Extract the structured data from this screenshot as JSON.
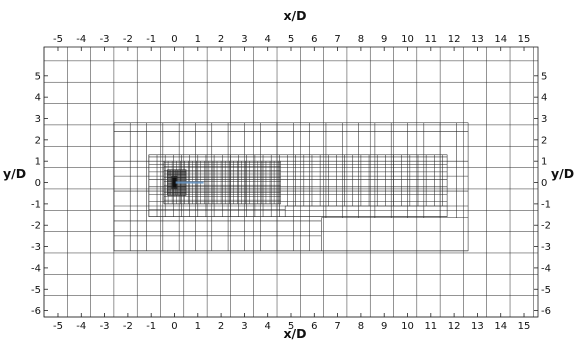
{
  "x_axis": {
    "label": "x/D",
    "range": [
      -5.6,
      15.6
    ],
    "ticks": [
      -5,
      -4,
      -3,
      -2,
      -1,
      0,
      1,
      2,
      3,
      4,
      5,
      6,
      7,
      8,
      9,
      10,
      11,
      12,
      13,
      14,
      15
    ]
  },
  "y_axis": {
    "label": "y/D",
    "range": [
      -6.3,
      6.35
    ],
    "ticks": [
      5,
      4,
      3,
      2,
      1,
      0,
      -1,
      -2,
      -3,
      -4,
      -5,
      -6
    ]
  },
  "mesh": {
    "description_levels": [
      {
        "name": "background",
        "x_range": [
          -5.6,
          15.6
        ],
        "y_range": [
          -6.3,
          6.35
        ],
        "spacing": 1.0
      },
      {
        "name": "refine-1",
        "x_range": [
          -2.6,
          12.6
        ],
        "y_range": [
          -3.2,
          2.8
        ],
        "spacing": 0.7,
        "notch": {
          "x_range": [
            6.3,
            12.6
          ],
          "y_range": [
            -3.2,
            -1.65
          ]
        }
      },
      {
        "name": "refine-2",
        "x_range": [
          -1.1,
          11.7
        ],
        "y_range": [
          -1.6,
          1.3
        ],
        "spacing": 0.35,
        "notch": {
          "x_range": [
            4.75,
            11.7
          ],
          "y_range": [
            -1.6,
            -1.1
          ]
        }
      },
      {
        "name": "refine-3",
        "x_range": [
          -0.45,
          4.55
        ],
        "y_range": [
          -1.0,
          1.0
        ],
        "spacing": 0.175
      },
      {
        "name": "refine-4",
        "x_range": [
          -0.3,
          0.5
        ],
        "y_range": [
          -0.6,
          0.6
        ],
        "spacing": 0.07
      },
      {
        "name": "refine-5",
        "x_range": [
          -0.12,
          0.12
        ],
        "y_range": [
          -0.3,
          0.3
        ],
        "spacing": 0.03
      }
    ],
    "line_color": "#2b2b2b",
    "wake_color": "#5f8fbf"
  }
}
